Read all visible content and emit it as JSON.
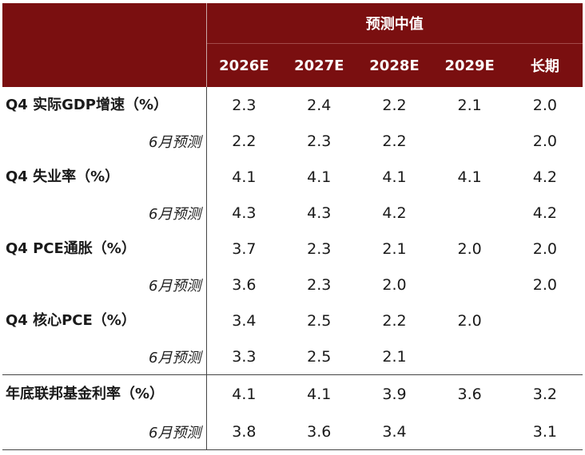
{
  "header": {
    "group_title": "预测中值",
    "columns": [
      "2026E",
      "2027E",
      "2028E",
      "2029E",
      "长期"
    ]
  },
  "rows": [
    {
      "label": "Q4 实际GDP增速（%）",
      "values": [
        "2.3",
        "2.4",
        "2.2",
        "2.1",
        "2.0"
      ]
    },
    {
      "label": "6月预测",
      "values": [
        "2.2",
        "2.3",
        "2.2",
        "",
        "2.0"
      ]
    },
    {
      "label": "Q4 失业率（%）",
      "values": [
        "4.1",
        "4.1",
        "4.1",
        "4.1",
        "4.2"
      ]
    },
    {
      "label": "6月预测",
      "values": [
        "4.3",
        "4.3",
        "4.2",
        "",
        "4.2"
      ]
    },
    {
      "label": "Q4 PCE通胀（%）",
      "values": [
        "3.7",
        "2.3",
        "2.1",
        "2.0",
        "2.0"
      ]
    },
    {
      "label": "6月预测",
      "values": [
        "3.6",
        "2.3",
        "2.0",
        "",
        "2.0"
      ]
    },
    {
      "label": "Q4 核心PCE（%）",
      "values": [
        "3.4",
        "2.5",
        "2.2",
        "2.0",
        ""
      ]
    },
    {
      "label": "6月预测",
      "values": [
        "3.3",
        "2.5",
        "2.1",
        "",
        ""
      ]
    },
    {
      "label": "年底联邦基金利率（%）",
      "values": [
        "4.1",
        "4.1",
        "3.9",
        "3.6",
        "3.2"
      ]
    },
    {
      "label": "6月预测",
      "values": [
        "3.8",
        "3.6",
        "3.4",
        "",
        "3.1"
      ]
    }
  ]
}
